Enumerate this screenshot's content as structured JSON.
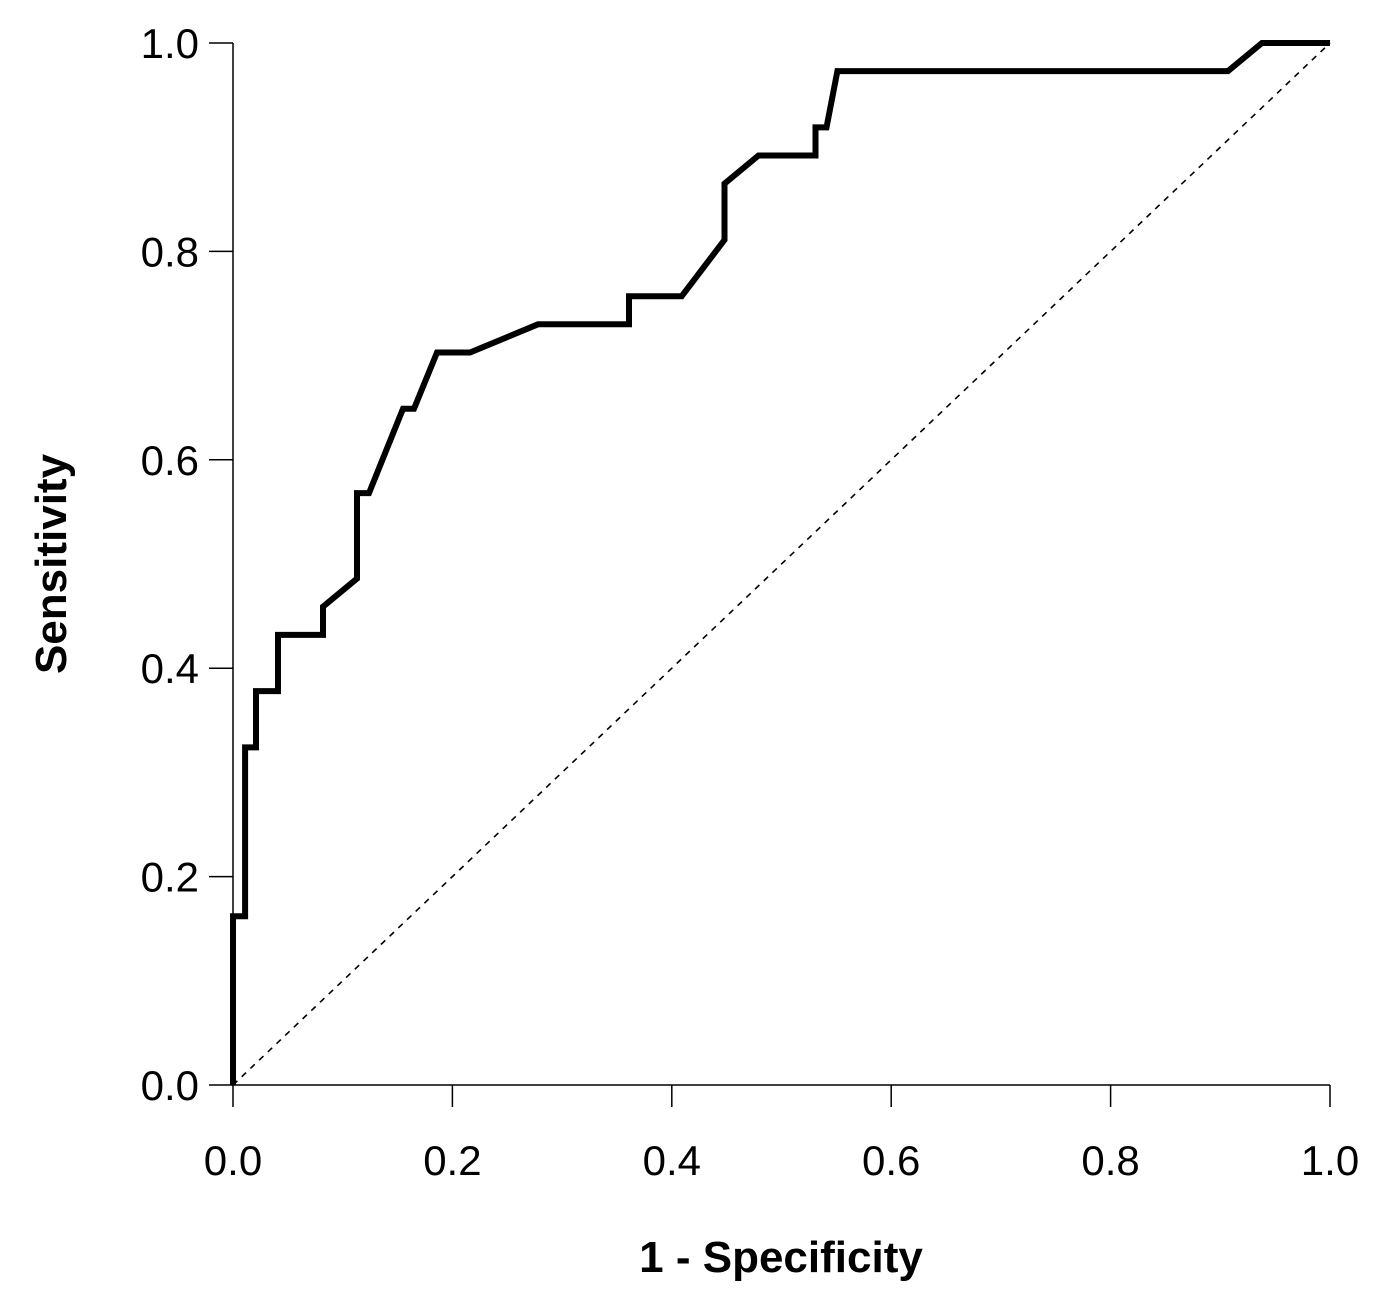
{
  "chart_data": {
    "type": "line",
    "title": "",
    "xlabel": "1 - Specificity",
    "ylabel": "Sensitivity",
    "xlim": [
      0,
      1
    ],
    "ylim": [
      0,
      1
    ],
    "x_ticks": [
      0.0,
      0.2,
      0.4,
      0.6,
      0.8,
      1.0
    ],
    "y_ticks": [
      0.0,
      0.2,
      0.4,
      0.6,
      0.8,
      1.0
    ],
    "x_tick_labels": [
      "0.0",
      "0.2",
      "0.4",
      "0.6",
      "0.8",
      "1.0"
    ],
    "y_tick_labels": [
      "0.0",
      "0.2",
      "0.4",
      "0.6",
      "0.8",
      "1.0"
    ],
    "grid": false,
    "series": [
      {
        "name": "ROC curve",
        "style": "solid-thick",
        "color": "#000000",
        "x": [
          0.0,
          0.0,
          0.011,
          0.011,
          0.021,
          0.021,
          0.041,
          0.041,
          0.082,
          0.082,
          0.113,
          0.113,
          0.124,
          0.155,
          0.165,
          0.186,
          0.216,
          0.278,
          0.361,
          0.361,
          0.409,
          0.448,
          0.448,
          0.479,
          0.531,
          0.531,
          0.541,
          0.551,
          0.907,
          0.938,
          1.0
        ],
        "y": [
          0.0,
          0.162,
          0.162,
          0.324,
          0.324,
          0.378,
          0.378,
          0.432,
          0.432,
          0.459,
          0.486,
          0.568,
          0.568,
          0.649,
          0.649,
          0.703,
          0.703,
          0.73,
          0.73,
          0.757,
          0.757,
          0.811,
          0.865,
          0.892,
          0.892,
          0.919,
          0.919,
          0.973,
          0.973,
          1.0,
          1.0
        ]
      },
      {
        "name": "Reference line",
        "style": "dashed-thin",
        "color": "#000000",
        "x": [
          0.0,
          1.0
        ],
        "y": [
          0.0,
          1.0
        ]
      }
    ]
  }
}
